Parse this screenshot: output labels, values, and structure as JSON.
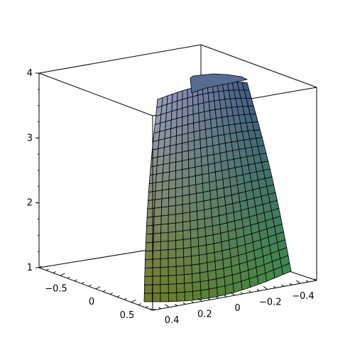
{
  "chart_data": {
    "type": "surface3d",
    "title": "",
    "xlabel": "",
    "ylabel": "",
    "zlabel": "",
    "box": {
      "x_range": [
        -0.8,
        0.8
      ],
      "y_range": [
        -0.5,
        0.5
      ],
      "z_range": [
        1,
        4
      ]
    },
    "z_ticks": [
      {
        "value": 4,
        "label": "4"
      },
      {
        "value": 3,
        "label": "3"
      },
      {
        "value": 2,
        "label": "2"
      },
      {
        "value": 1,
        "label": "1"
      }
    ],
    "x_ticks": [
      {
        "value": -0.5,
        "label": "−0.5"
      },
      {
        "value": 0,
        "label": "0"
      },
      {
        "value": 0.5,
        "label": "0.5"
      }
    ],
    "y_ticks": [
      {
        "value": 0.4,
        "label": "0.4"
      },
      {
        "value": 0.2,
        "label": "0.2"
      },
      {
        "value": 0,
        "label": "0"
      },
      {
        "value": -0.2,
        "label": "−0.2"
      },
      {
        "value": -0.4,
        "label": "−0.4"
      }
    ],
    "surface": {
      "description_free": true,
      "grid_rows": 24,
      "grid_cols": 18,
      "colors": {
        "top_left": "#9a9ec0",
        "top_right": "#3f5a86",
        "bottom_left": "#6f7a24",
        "bottom_right": "#3f8a4e",
        "mesh": "#000000"
      }
    },
    "grid": false
  }
}
